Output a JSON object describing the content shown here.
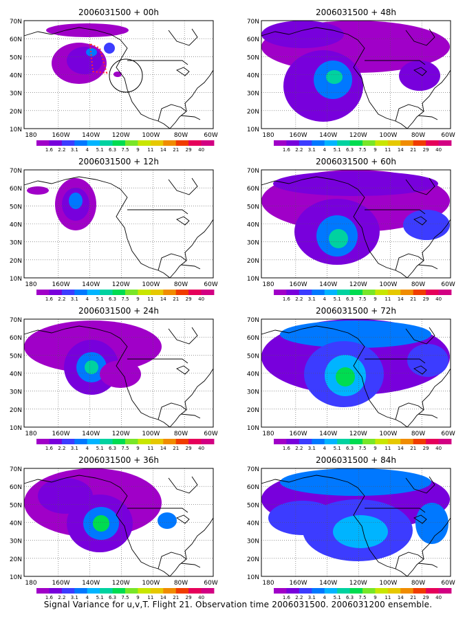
{
  "caption": "Signal Variance for u,v,T. Flight 21. Observation time 2006031500. 2006031200 ensemble.",
  "lat_labels": [
    "70N",
    "60N",
    "50N",
    "40N",
    "30N",
    "20N",
    "10N"
  ],
  "lon_labels": [
    "180",
    "160W",
    "140W",
    "120W",
    "100W",
    "80W",
    "60W"
  ],
  "colorbar_labels": [
    "1.6",
    "2.2",
    "3.1",
    "4",
    "5.1",
    "6.3",
    "7.5",
    "9",
    "11",
    "14",
    "21",
    "29",
    "40"
  ],
  "colorbar_colors": [
    "#a000c8",
    "#7800dc",
    "#3c3cff",
    "#0078ff",
    "#00b4ff",
    "#00d2a0",
    "#00dc50",
    "#78e628",
    "#c8e600",
    "#e6c800",
    "#f08c00",
    "#f03c00",
    "#e6005a",
    "#d20082"
  ],
  "panels": [
    {
      "id": "p00",
      "title": "2006031500 + 00h"
    },
    {
      "id": "p48",
      "title": "2006031500 + 48h"
    },
    {
      "id": "p12",
      "title": "2006031500 + 12h"
    },
    {
      "id": "p60",
      "title": "2006031500 + 60h"
    },
    {
      "id": "p24",
      "title": "2006031500 + 24h"
    },
    {
      "id": "p72",
      "title": "2006031500 + 72h"
    },
    {
      "id": "p36",
      "title": "2006031500 + 36h"
    },
    {
      "id": "p84",
      "title": "2006031500 + 84h"
    }
  ]
}
